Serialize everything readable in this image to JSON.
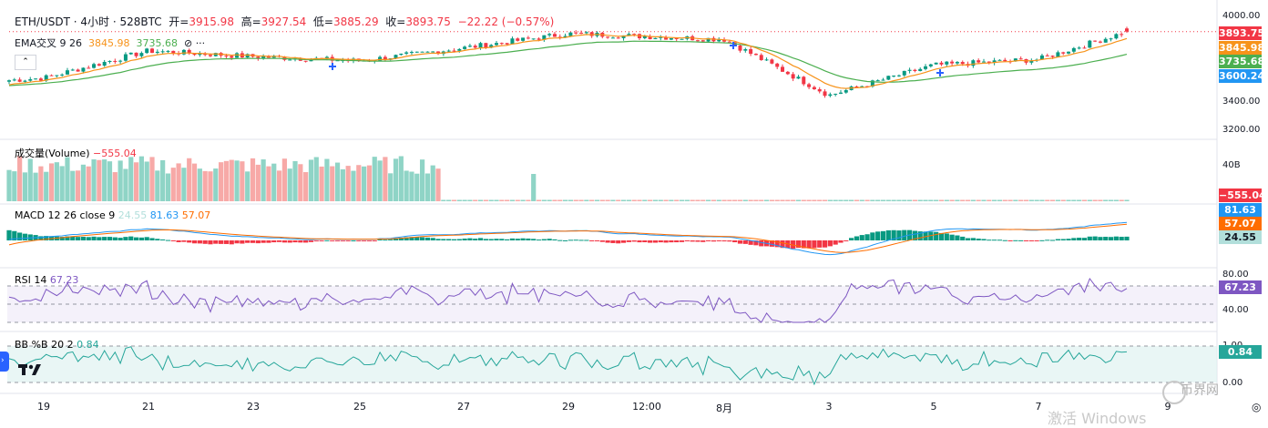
{
  "header": {
    "symbol": "ETH/USDT · 4小时 · 528BTC",
    "open_label": "开=",
    "open": "3915.98",
    "high_label": "高=",
    "high": "3927.54",
    "low_label": "低=",
    "low": "3885.29",
    "close_label": "收=",
    "close": "3893.75",
    "change": "−22.22 (−0.57%)"
  },
  "ema": {
    "label": "EMA交叉 9 26",
    "fast": "3845.98",
    "slow": "3735.68"
  },
  "volume": {
    "label": "成交量(Volume)",
    "value": "−555.04",
    "axis_tick": "40B",
    "badge": "−555.04"
  },
  "macd": {
    "label": "MACD 12 26 close 9",
    "hist": "24.55",
    "macd": "81.63",
    "signal": "57.07"
  },
  "rsi": {
    "label": "RSI 14",
    "value": "67.23",
    "axis_ticks": [
      "80.00",
      "40.00"
    ]
  },
  "bb": {
    "label": "BB %B 20 2",
    "value": "0.84",
    "axis_ticks": [
      "1.00",
      "0.00"
    ]
  },
  "price_axis": {
    "ticks": [
      "4000.00",
      "3400.00",
      "3200.00"
    ]
  },
  "price_badges": {
    "last": "3893.75",
    "ema_fast": "3845.98",
    "ema_slow": "3735.68",
    "extra": "3600.24"
  },
  "x_axis": {
    "ticks": [
      "19",
      "21",
      "23",
      "25",
      "27",
      "29",
      "12:00",
      "8月",
      "3",
      "5",
      "7",
      "9"
    ]
  },
  "watermark": "币界网",
  "windows_watermark": "激活 Windows",
  "colors": {
    "up": "#089981",
    "down": "#f23645",
    "up_vol": "#8fd4c6",
    "down_vol": "#f7a9a7",
    "ema_fast": "#f7931a",
    "ema_slow": "#4caf50",
    "macd_line": "#2196f3",
    "signal_line": "#ff6d00",
    "rsi_line": "#7e57c2",
    "bb_line": "#26a69a",
    "badge_last": "#f23645",
    "badge_extra": "#2196f3"
  },
  "chart_data": [
    {
      "type": "candlestick",
      "title": "ETH/USDT · 4小时 · 528BTC",
      "x_ticks": [
        "19",
        "21",
        "23",
        "25",
        "27",
        "29",
        "12:00",
        "8月",
        "3",
        "5",
        "7",
        "9"
      ],
      "ylim": [
        3200,
        4000
      ],
      "key_points": [
        {
          "x": "19",
          "close": 3570
        },
        {
          "x": "21",
          "close": 3760
        },
        {
          "x": "23",
          "close": 3720
        },
        {
          "x": "25",
          "close": 3690
        },
        {
          "x": "27",
          "close": 3780
        },
        {
          "x": "29",
          "close": 3880
        },
        {
          "x": "12:00",
          "close": 3860
        },
        {
          "x": "8月",
          "close": 3840
        },
        {
          "x": "3",
          "close": 3450
        },
        {
          "x": "5",
          "close": 3660
        },
        {
          "x": "7",
          "close": 3700
        },
        {
          "x": "last",
          "close": 3893.75
        }
      ],
      "last": {
        "open": 3915.98,
        "high": 3927.54,
        "low": 3885.29,
        "close": 3893.75,
        "change": -22.22,
        "change_pct": -0.57
      },
      "series": [
        {
          "name": "EMA 9",
          "last": 3845.98
        },
        {
          "name": "EMA 26",
          "last": 3735.68
        }
      ]
    },
    {
      "type": "bar",
      "title": "成交量(Volume)",
      "last": -555.04
    },
    {
      "type": "line",
      "title": "MACD 12 26 close 9",
      "series": [
        {
          "name": "MACD",
          "last": 81.63
        },
        {
          "name": "Signal",
          "last": 57.07
        },
        {
          "name": "Histogram",
          "last": 24.55
        }
      ]
    },
    {
      "type": "line",
      "title": "RSI 14",
      "last": 67.23,
      "ylim": [
        30,
        80
      ],
      "bands": [
        70,
        30
      ]
    },
    {
      "type": "line",
      "title": "BB %B 20 2",
      "last": 0.84,
      "ylim": [
        0,
        1
      ]
    }
  ]
}
